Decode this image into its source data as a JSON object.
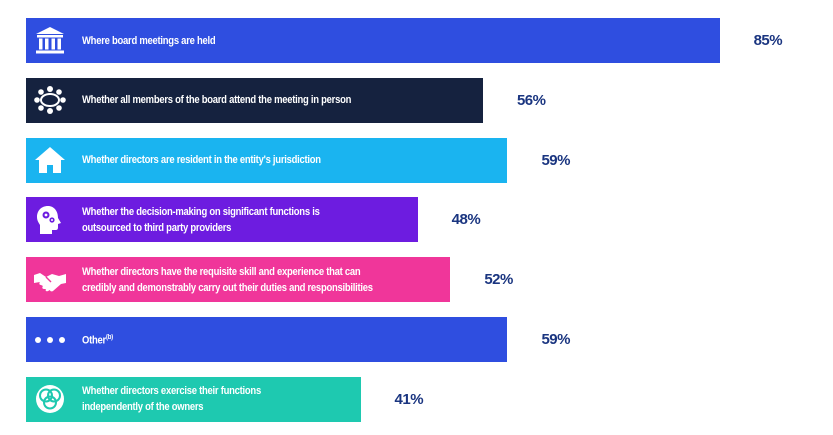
{
  "chart_data": {
    "type": "bar",
    "orientation": "horizontal",
    "categories": [
      "Where board meetings are held",
      "Whether all members of the board attend the meeting in person",
      "Whether directors are resident in the entity's jurisdiction",
      "Whether the decision-making on significant functions is outsourced to third party providers",
      "Whether directors have the requisite skill and experience that can credibly and demonstrably carry out their duties and responsibilities",
      "Other",
      "Whether directors exercise their functions independently of the owners"
    ],
    "values": [
      85,
      56,
      59,
      48,
      52,
      59,
      41
    ],
    "value_labels": [
      "85%",
      "56%",
      "59%",
      "48%",
      "52%",
      "59%",
      "41%"
    ],
    "footnote_markers": [
      "",
      "",
      "",
      "",
      "",
      "(b)",
      ""
    ],
    "colors": [
      "#2f4ee0",
      "#15223f",
      "#1ab4f0",
      "#6d1ce0",
      "#f0369a",
      "#2f4ee0",
      "#1ec9b0"
    ],
    "icons": [
      "bank-icon",
      "meeting-table-icon",
      "house-icon",
      "head-gears-icon",
      "handshake-icon",
      "dots-icon",
      "venn-icon"
    ],
    "value_color": "#1a3580",
    "xlim": [
      0,
      100
    ]
  }
}
